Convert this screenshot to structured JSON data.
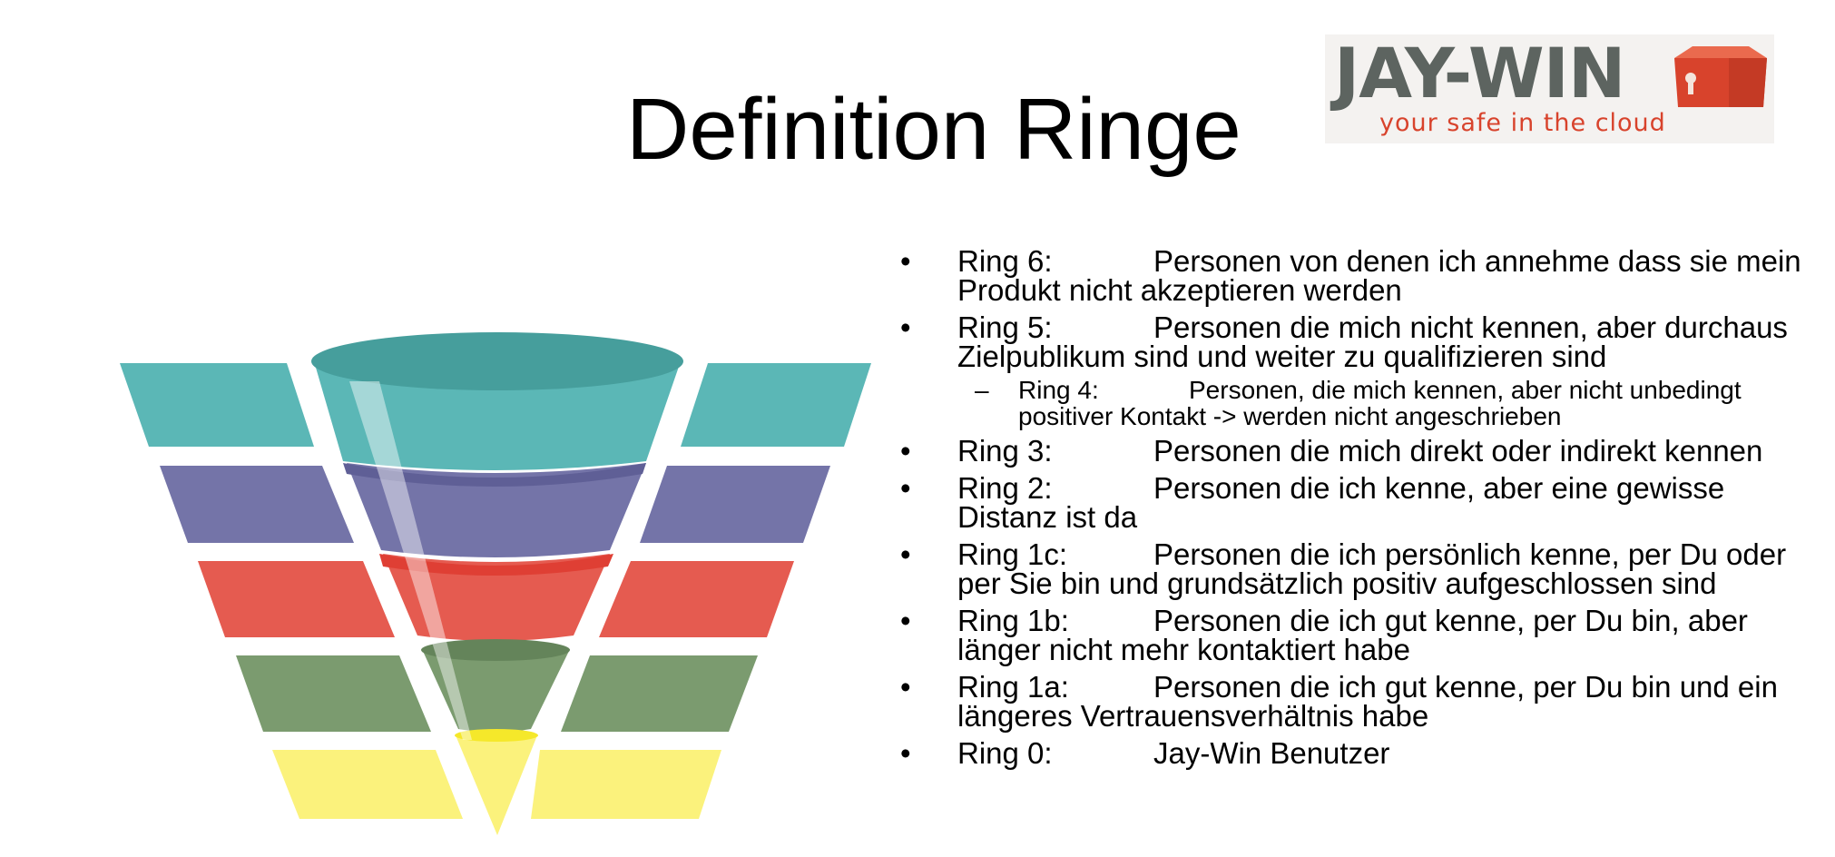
{
  "slide": {
    "title": "Definition Ringe",
    "logo": {
      "name": "JAY-WIN",
      "tagline": "your safe in the cloud",
      "colors": {
        "text": "#5d6460",
        "accent": "#d8432c"
      }
    }
  },
  "funnel": {
    "levels": [
      {
        "color": "#5bb7b6"
      },
      {
        "color": "#7474a8"
      },
      {
        "color": "#e55b50"
      },
      {
        "color": "#7b9b6f"
      },
      {
        "color": "#fbf27c"
      }
    ]
  },
  "rings": [
    {
      "bullet": "•",
      "label": "Ring 6:",
      "text": "Personen von denen ich annehme dass sie mein Produkt nicht akzeptieren werden"
    },
    {
      "bullet": "•",
      "label": "Ring 5:",
      "text": "Personen die mich nicht kennen, aber durchaus Zielpublikum sind und weiter zu qualifizieren sind"
    },
    {
      "bullet": "–",
      "label": "Ring 4:",
      "text": "Personen, die mich kennen, aber nicht unbedingt positiver Kontakt -> werden nicht angeschrieben"
    },
    {
      "bullet": "•",
      "label": "Ring 3:",
      "text": "Personen die mich direkt oder indirekt kennen"
    },
    {
      "bullet": "•",
      "label": "Ring 2:",
      "text": "Personen die ich kenne, aber eine gewisse Distanz ist da"
    },
    {
      "bullet": "•",
      "label": "Ring 1c:",
      "text": "Personen die ich persönlich kenne, per Du oder per Sie bin und grundsätzlich positiv aufgeschlossen sind"
    },
    {
      "bullet": "•",
      "label": "Ring 1b:",
      "text": "Personen die ich gut kenne, per Du bin, aber länger nicht mehr kontaktiert habe"
    },
    {
      "bullet": "•",
      "label": "Ring 1a:",
      "text": "Personen die ich gut kenne, per Du bin und ein längeres Vertrauensverhältnis habe"
    },
    {
      "bullet": "•",
      "label": "Ring 0:",
      "text": "Jay-Win Benutzer"
    }
  ]
}
